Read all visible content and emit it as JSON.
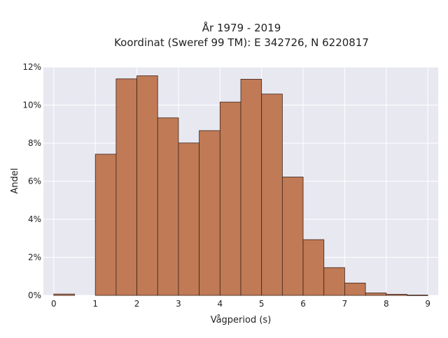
{
  "chart_data": {
    "type": "bar",
    "title": [
      "År 1979 - 2019",
      "Koordinat (Sweref 99 TM): E 342726, N 6220817"
    ],
    "xlabel": "Vågperiod (s)",
    "ylabel": "Andel",
    "bin_width": 0.5,
    "bins": [
      {
        "x0": 0.0,
        "x1": 0.5,
        "value": 0.0007
      },
      {
        "x0": 0.5,
        "x1": 1.0,
        "value": 0.0
      },
      {
        "x0": 1.0,
        "x1": 1.5,
        "value": 0.0742
      },
      {
        "x0": 1.5,
        "x1": 2.0,
        "value": 0.1138
      },
      {
        "x0": 2.0,
        "x1": 2.5,
        "value": 0.1154
      },
      {
        "x0": 2.5,
        "x1": 3.0,
        "value": 0.0933
      },
      {
        "x0": 3.0,
        "x1": 3.5,
        "value": 0.0801
      },
      {
        "x0": 3.5,
        "x1": 4.0,
        "value": 0.0866
      },
      {
        "x0": 4.0,
        "x1": 4.5,
        "value": 0.1016
      },
      {
        "x0": 4.5,
        "x1": 5.0,
        "value": 0.1136
      },
      {
        "x0": 5.0,
        "x1": 5.5,
        "value": 0.1058
      },
      {
        "x0": 5.5,
        "x1": 6.0,
        "value": 0.0622
      },
      {
        "x0": 6.0,
        "x1": 6.5,
        "value": 0.0293
      },
      {
        "x0": 6.5,
        "x1": 7.0,
        "value": 0.0146
      },
      {
        "x0": 7.0,
        "x1": 7.5,
        "value": 0.0065
      },
      {
        "x0": 7.5,
        "x1": 8.0,
        "value": 0.0013
      },
      {
        "x0": 8.0,
        "x1": 8.5,
        "value": 0.0006
      },
      {
        "x0": 8.5,
        "x1": 9.0,
        "value": 0.0002
      }
    ],
    "xlim": [
      -0.25,
      9.25
    ],
    "ylim": [
      0,
      0.12
    ],
    "xticks": [
      0,
      1,
      2,
      3,
      4,
      5,
      6,
      7,
      8,
      9
    ],
    "xtick_labels": [
      "0",
      "1",
      "2",
      "3",
      "4",
      "5",
      "6",
      "7",
      "8",
      "9"
    ],
    "yticks": [
      0,
      0.02,
      0.04,
      0.06,
      0.08,
      0.1,
      0.12
    ],
    "ytick_labels": [
      "0%",
      "2%",
      "4%",
      "6%",
      "8%",
      "10%",
      "12%"
    ],
    "grid": true,
    "colors": {
      "bar_fill": "#c07a56",
      "bar_edge": "#3d2418",
      "plot_bg": "#e8e8f1",
      "grid": "#ffffff"
    }
  }
}
